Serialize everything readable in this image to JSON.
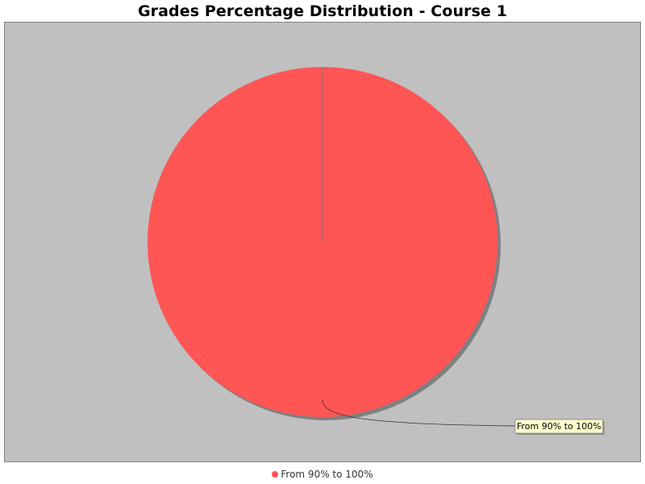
{
  "chart_data": {
    "type": "pie",
    "title": "Grades Percentage Distribution - Course 1",
    "slices": [
      {
        "label": "From 90% to 100%",
        "value": 100,
        "color": "#ff5555"
      }
    ],
    "plot_background": "#c0c0c0",
    "legend_position": "bottom-center",
    "slice_label_background": "#ffffcc"
  }
}
